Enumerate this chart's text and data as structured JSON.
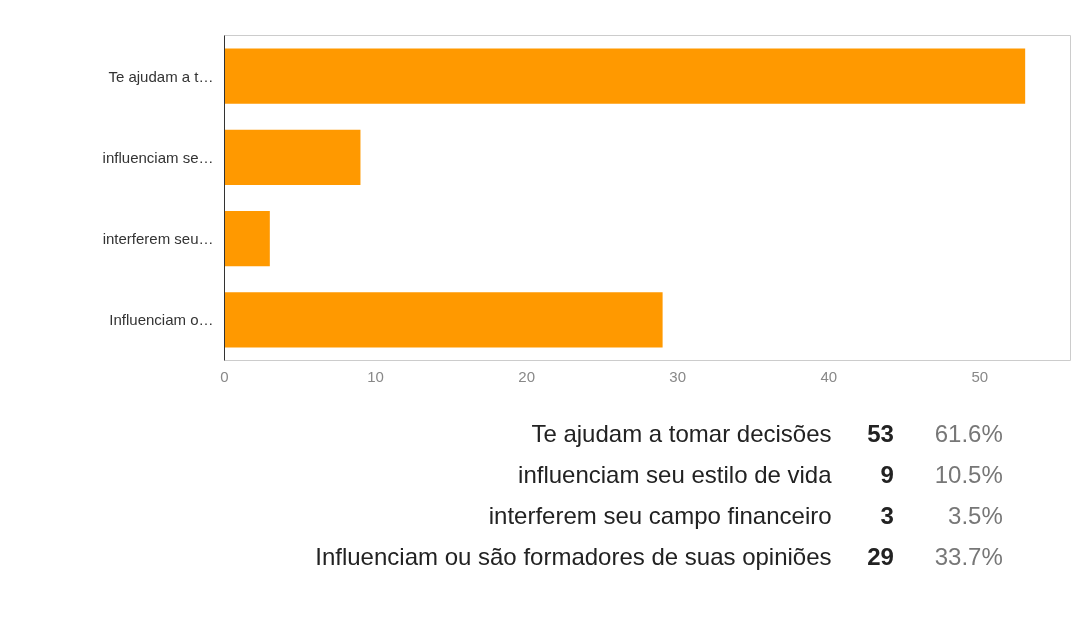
{
  "chart_data": {
    "type": "bar",
    "orientation": "horizontal",
    "categories": [
      "Te ajudam a t…",
      "influenciam se…",
      "interferem seu…",
      "Influenciam o…"
    ],
    "values": [
      53,
      9,
      3,
      29
    ],
    "color": "#ff9900",
    "xlim": [
      0,
      56
    ],
    "xticks": [
      0,
      10,
      20,
      30,
      40,
      50
    ],
    "grid": false,
    "annotations": [
      "Te ajudam a tomar decisões",
      "53",
      "61.6%",
      "influenciam seu estilo de vida",
      "9",
      "10.5%",
      "interferem seu campo financeiro",
      "3",
      "3.5%",
      "Influenciam ou são formadores de suas opiniões",
      "29",
      "33.7%"
    ]
  }
}
